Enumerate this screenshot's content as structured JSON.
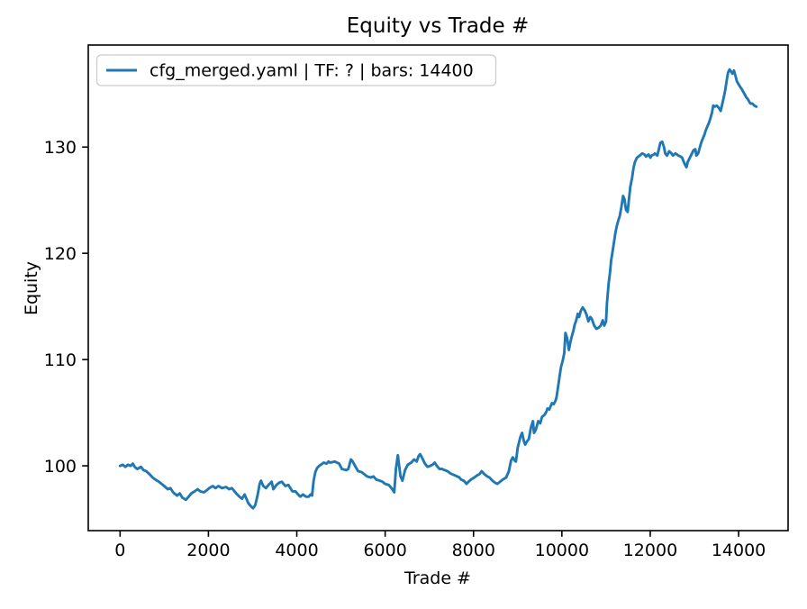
{
  "chart_data": {
    "type": "line",
    "title": "Equity vs Trade #",
    "xlabel": "Trade #",
    "ylabel": "Equity",
    "legend_entries": [
      "cfg_merged.yaml | TF: ? | bars: 14400"
    ],
    "legend_position": "upper left",
    "grid": false,
    "xlim": [
      -720,
      15120
    ],
    "ylim": [
      93.9,
      139.6
    ],
    "xticks": [
      0,
      2000,
      4000,
      6000,
      8000,
      10000,
      12000,
      14000
    ],
    "yticks": [
      100,
      110,
      120,
      130
    ],
    "series": [
      {
        "name": "cfg_merged.yaml | TF: ? | bars: 14400",
        "color": "#1f77b4",
        "points": [
          [
            0,
            100.0
          ],
          [
            60,
            100.1
          ],
          [
            120,
            99.9
          ],
          [
            180,
            100.1
          ],
          [
            240,
            100.0
          ],
          [
            290,
            100.2
          ],
          [
            330,
            99.9
          ],
          [
            390,
            99.7
          ],
          [
            470,
            99.9
          ],
          [
            530,
            99.6
          ],
          [
            590,
            99.5
          ],
          [
            670,
            99.2
          ],
          [
            735,
            98.9
          ],
          [
            800,
            98.7
          ],
          [
            880,
            98.5
          ],
          [
            940,
            98.3
          ],
          [
            1000,
            98.1
          ],
          [
            1080,
            97.8
          ],
          [
            1140,
            97.9
          ],
          [
            1200,
            97.5
          ],
          [
            1290,
            97.2
          ],
          [
            1350,
            97.4
          ],
          [
            1410,
            97.0
          ],
          [
            1490,
            96.8
          ],
          [
            1550,
            97.1
          ],
          [
            1610,
            97.4
          ],
          [
            1690,
            97.6
          ],
          [
            1755,
            97.8
          ],
          [
            1815,
            97.6
          ],
          [
            1900,
            97.5
          ],
          [
            1960,
            97.7
          ],
          [
            2020,
            97.9
          ],
          [
            2100,
            98.1
          ],
          [
            2160,
            97.9
          ],
          [
            2225,
            98.1
          ],
          [
            2305,
            97.9
          ],
          [
            2400,
            98.0
          ],
          [
            2470,
            97.8
          ],
          [
            2530,
            97.9
          ],
          [
            2630,
            97.4
          ],
          [
            2700,
            97.1
          ],
          [
            2760,
            96.9
          ],
          [
            2820,
            97.3
          ],
          [
            2900,
            96.5
          ],
          [
            2960,
            96.2
          ],
          [
            3010,
            96.0
          ],
          [
            3060,
            96.3
          ],
          [
            3110,
            97.2
          ],
          [
            3160,
            98.3
          ],
          [
            3190,
            98.6
          ],
          [
            3240,
            98.1
          ],
          [
            3300,
            97.9
          ],
          [
            3360,
            98.2
          ],
          [
            3430,
            98.5
          ],
          [
            3470,
            97.8
          ],
          [
            3540,
            98.2
          ],
          [
            3600,
            98.4
          ],
          [
            3660,
            98.5
          ],
          [
            3740,
            98.1
          ],
          [
            3810,
            98.2
          ],
          [
            3900,
            97.6
          ],
          [
            3970,
            97.6
          ],
          [
            4030,
            97.3
          ],
          [
            4080,
            97.1
          ],
          [
            4140,
            97.3
          ],
          [
            4210,
            97.1
          ],
          [
            4270,
            97.1
          ],
          [
            4310,
            97.3
          ],
          [
            4345,
            97.2
          ],
          [
            4380,
            98.6
          ],
          [
            4420,
            99.4
          ],
          [
            4460,
            99.8
          ],
          [
            4510,
            100.0
          ],
          [
            4610,
            100.3
          ],
          [
            4675,
            100.2
          ],
          [
            4714,
            100.4
          ],
          [
            4760,
            100.3
          ],
          [
            4860,
            100.4
          ],
          [
            4960,
            100.2
          ],
          [
            5020,
            99.7
          ],
          [
            5120,
            99.6
          ],
          [
            5165,
            99.7
          ],
          [
            5225,
            100.6
          ],
          [
            5265,
            100.4
          ],
          [
            5330,
            99.9
          ],
          [
            5390,
            99.5
          ],
          [
            5470,
            99.4
          ],
          [
            5530,
            99.2
          ],
          [
            5590,
            99.0
          ],
          [
            5675,
            98.9
          ],
          [
            5735,
            99.0
          ],
          [
            5800,
            98.7
          ],
          [
            5880,
            98.6
          ],
          [
            5940,
            98.5
          ],
          [
            6000,
            98.3
          ],
          [
            6080,
            98.2
          ],
          [
            6145,
            97.9
          ],
          [
            6205,
            97.5
          ],
          [
            6245,
            99.8
          ],
          [
            6286,
            101.0
          ],
          [
            6347,
            99.0
          ],
          [
            6390,
            98.6
          ],
          [
            6450,
            99.6
          ],
          [
            6510,
            100.1
          ],
          [
            6590,
            100.3
          ],
          [
            6655,
            100.6
          ],
          [
            6715,
            100.4
          ],
          [
            6755,
            100.9
          ],
          [
            6790,
            101.1
          ],
          [
            6830,
            100.8
          ],
          [
            6900,
            100.2
          ],
          [
            6960,
            99.9
          ],
          [
            7020,
            100.0
          ],
          [
            7070,
            100.1
          ],
          [
            7120,
            100.3
          ],
          [
            7170,
            100.0
          ],
          [
            7230,
            99.7
          ],
          [
            7290,
            99.7
          ],
          [
            7340,
            99.6
          ],
          [
            7410,
            99.5
          ],
          [
            7470,
            99.3
          ],
          [
            7520,
            99.2
          ],
          [
            7580,
            99.1
          ],
          [
            7680,
            98.9
          ],
          [
            7720,
            98.7
          ],
          [
            7780,
            98.6
          ],
          [
            7840,
            98.3
          ],
          [
            7890,
            98.5
          ],
          [
            7940,
            98.7
          ],
          [
            8020,
            98.9
          ],
          [
            8080,
            99.1
          ],
          [
            8130,
            99.2
          ],
          [
            8185,
            99.5
          ],
          [
            8250,
            99.2
          ],
          [
            8310,
            99.0
          ],
          [
            8360,
            98.9
          ],
          [
            8430,
            98.6
          ],
          [
            8490,
            98.4
          ],
          [
            8540,
            98.3
          ],
          [
            8600,
            98.5
          ],
          [
            8660,
            98.7
          ],
          [
            8740,
            98.9
          ],
          [
            8800,
            99.5
          ],
          [
            8850,
            100.5
          ],
          [
            8890,
            100.8
          ],
          [
            8930,
            100.5
          ],
          [
            8960,
            100.4
          ],
          [
            9000,
            101.7
          ],
          [
            9060,
            102.7
          ],
          [
            9100,
            103.1
          ],
          [
            9140,
            102.3
          ],
          [
            9170,
            102.0
          ],
          [
            9210,
            102.3
          ],
          [
            9250,
            102.5
          ],
          [
            9300,
            103.6
          ],
          [
            9345,
            104.2
          ],
          [
            9370,
            103.1
          ],
          [
            9410,
            103.4
          ],
          [
            9465,
            104.2
          ],
          [
            9510,
            104.0
          ],
          [
            9550,
            104.6
          ],
          [
            9610,
            104.8
          ],
          [
            9650,
            105.1
          ],
          [
            9675,
            105.4
          ],
          [
            9715,
            105.3
          ],
          [
            9755,
            105.7
          ],
          [
            9775,
            105.9
          ],
          [
            9815,
            105.8
          ],
          [
            9855,
            106.1
          ],
          [
            9880,
            106.5
          ],
          [
            9920,
            107.6
          ],
          [
            9955,
            108.6
          ],
          [
            9980,
            109.3
          ],
          [
            10020,
            109.9
          ],
          [
            10055,
            110.6
          ],
          [
            10080,
            112.5
          ],
          [
            10120,
            112.0
          ],
          [
            10160,
            110.9
          ],
          [
            10190,
            111.6
          ],
          [
            10225,
            112.2
          ],
          [
            10260,
            112.7
          ],
          [
            10290,
            113.3
          ],
          [
            10325,
            113.7
          ],
          [
            10360,
            114.3
          ],
          [
            10390,
            114.0
          ],
          [
            10430,
            114.6
          ],
          [
            10470,
            114.9
          ],
          [
            10520,
            114.6
          ],
          [
            10560,
            114.2
          ],
          [
            10600,
            113.6
          ],
          [
            10645,
            114.0
          ],
          [
            10680,
            113.8
          ],
          [
            10730,
            113.2
          ],
          [
            10780,
            112.9
          ],
          [
            10830,
            113.0
          ],
          [
            10880,
            113.2
          ],
          [
            10925,
            113.7
          ],
          [
            10960,
            113.2
          ],
          [
            11000,
            113.6
          ],
          [
            11020,
            115.3
          ],
          [
            11060,
            117.2
          ],
          [
            11090,
            118.2
          ],
          [
            11115,
            119.3
          ],
          [
            11145,
            120.1
          ],
          [
            11185,
            121.2
          ],
          [
            11210,
            121.9
          ],
          [
            11245,
            122.6
          ],
          [
            11285,
            123.2
          ],
          [
            11310,
            123.5
          ],
          [
            11345,
            124.3
          ],
          [
            11385,
            125.4
          ],
          [
            11415,
            125.1
          ],
          [
            11450,
            124.1
          ],
          [
            11490,
            123.9
          ],
          [
            11515,
            125.0
          ],
          [
            11550,
            126.3
          ],
          [
            11590,
            127.1
          ],
          [
            11620,
            128.0
          ],
          [
            11655,
            128.6
          ],
          [
            11700,
            129.0
          ],
          [
            11760,
            129.2
          ],
          [
            11820,
            129.4
          ],
          [
            11870,
            129.3
          ],
          [
            11905,
            129.1
          ],
          [
            11960,
            129.3
          ],
          [
            12005,
            129.0
          ],
          [
            12030,
            129.2
          ],
          [
            12080,
            129.3
          ],
          [
            12105,
            129.4
          ],
          [
            12160,
            129.2
          ],
          [
            12200,
            129.9
          ],
          [
            12230,
            130.4
          ],
          [
            12270,
            130.5
          ],
          [
            12310,
            130.0
          ],
          [
            12340,
            129.4
          ],
          [
            12380,
            129.2
          ],
          [
            12430,
            129.6
          ],
          [
            12480,
            129.4
          ],
          [
            12515,
            129.2
          ],
          [
            12570,
            129.4
          ],
          [
            12640,
            129.2
          ],
          [
            12690,
            129.1
          ],
          [
            12720,
            129.0
          ],
          [
            12780,
            128.4
          ],
          [
            12820,
            128.1
          ],
          [
            12850,
            128.6
          ],
          [
            12920,
            129.2
          ],
          [
            12980,
            129.7
          ],
          [
            13020,
            129.8
          ],
          [
            13045,
            129.2
          ],
          [
            13085,
            129.4
          ],
          [
            13145,
            130.3
          ],
          [
            13190,
            130.8
          ],
          [
            13230,
            131.2
          ],
          [
            13250,
            131.5
          ],
          [
            13290,
            131.9
          ],
          [
            13330,
            132.3
          ],
          [
            13360,
            132.7
          ],
          [
            13395,
            133.2
          ],
          [
            13425,
            133.9
          ],
          [
            13465,
            133.8
          ],
          [
            13505,
            133.9
          ],
          [
            13550,
            133.7
          ],
          [
            13595,
            133.4
          ],
          [
            13655,
            134.5
          ],
          [
            13695,
            135.3
          ],
          [
            13735,
            136.4
          ],
          [
            13760,
            137.0
          ],
          [
            13795,
            137.3
          ],
          [
            13830,
            137.1
          ],
          [
            13860,
            136.9
          ],
          [
            13895,
            137.2
          ],
          [
            13935,
            136.6
          ],
          [
            13960,
            136.2
          ],
          [
            14000,
            135.9
          ],
          [
            14045,
            135.6
          ],
          [
            14065,
            135.5
          ],
          [
            14105,
            135.2
          ],
          [
            14145,
            134.9
          ],
          [
            14170,
            134.7
          ],
          [
            14210,
            134.5
          ],
          [
            14250,
            134.2
          ],
          [
            14270,
            134.1
          ],
          [
            14310,
            134.1
          ],
          [
            14355,
            133.9
          ],
          [
            14400,
            133.8
          ]
        ]
      }
    ],
    "colors": {
      "line": "#1f77b4",
      "text": "#000000",
      "spine": "#000000",
      "legend_border": "#cccccc",
      "background": "#ffffff"
    }
  }
}
